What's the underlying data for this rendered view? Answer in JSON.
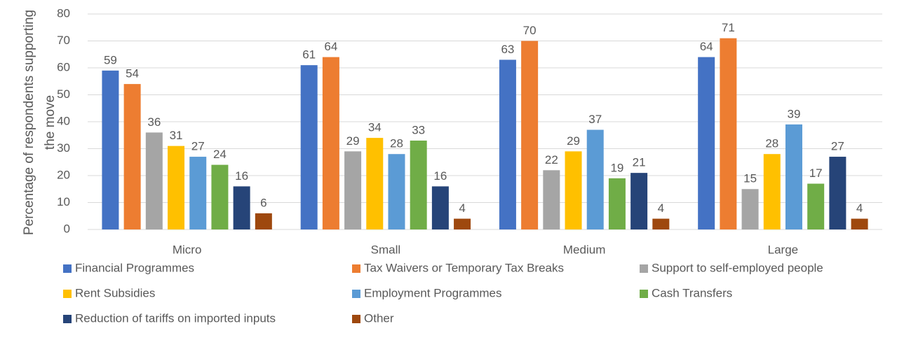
{
  "chart_data": {
    "type": "bar",
    "y_label": [
      "Percentage of respondents supporting",
      "the move"
    ],
    "categories": [
      "Micro",
      "Small",
      "Medium",
      "Large"
    ],
    "series": [
      {
        "name": "Financial Programmes",
        "color": "#4472c4",
        "values": [
          59,
          61,
          63,
          64
        ]
      },
      {
        "name": "Tax Waivers or Temporary Tax Breaks",
        "color": "#ed7d31",
        "values": [
          54,
          64,
          70,
          71
        ]
      },
      {
        "name": "Support to self-employed people",
        "color": "#a5a5a5",
        "values": [
          36,
          29,
          22,
          15
        ]
      },
      {
        "name": "Rent Subsidies",
        "color": "#ffc000",
        "values": [
          31,
          34,
          29,
          28
        ]
      },
      {
        "name": "Employment Programmes",
        "color": "#5b9bd5",
        "values": [
          27,
          28,
          37,
          39
        ]
      },
      {
        "name": "Cash Transfers",
        "color": "#70ad47",
        "values": [
          24,
          33,
          19,
          17
        ]
      },
      {
        "name": "Reduction of tariffs on imported inputs",
        "color": "#264478",
        "values": [
          16,
          16,
          21,
          27
        ]
      },
      {
        "name": "Other",
        "color": "#9e480e",
        "values": [
          6,
          4,
          4,
          4
        ]
      }
    ],
    "ylim": [
      0,
      80
    ],
    "yticks": [
      0,
      10,
      20,
      30,
      40,
      50,
      60,
      70,
      80
    ],
    "grid": true,
    "legend": "bottom"
  }
}
